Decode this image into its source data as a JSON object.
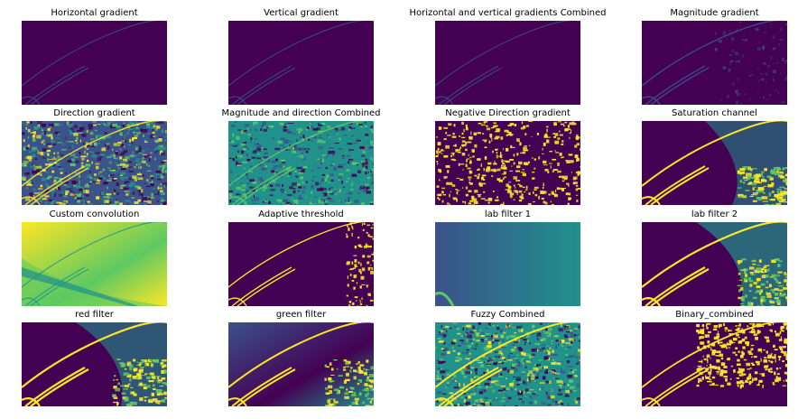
{
  "figure": {
    "panels": [
      {
        "title": "Horizontal gradient",
        "style": "dark-lines"
      },
      {
        "title": "Vertical gradient",
        "style": "dark-lines"
      },
      {
        "title": "Horizontal and vertical gradients Combined",
        "style": "dark-lines"
      },
      {
        "title": "Magnitude gradient",
        "style": "dark-lines-noisy"
      },
      {
        "title": "Direction gradient",
        "style": "noisy-yellow"
      },
      {
        "title": "Magnitude and direction Combined",
        "style": "noisy-teal"
      },
      {
        "title": "Negative Direction gradient",
        "style": "sparse-yellow"
      },
      {
        "title": "Saturation channel",
        "style": "saturation"
      },
      {
        "title": "Custom convolution",
        "style": "custom-conv"
      },
      {
        "title": "Adaptive threshold",
        "style": "adaptive"
      },
      {
        "title": "lab filter 1",
        "style": "lab1"
      },
      {
        "title": "lab filter 2",
        "style": "lab2"
      },
      {
        "title": "red filter",
        "style": "red"
      },
      {
        "title": "green filter",
        "style": "green"
      },
      {
        "title": "Fuzzy Combined",
        "style": "fuzzy"
      },
      {
        "title": "Binary_combined",
        "style": "binary"
      }
    ],
    "colormap": {
      "dark": "#440154",
      "indigo": "#3b528b",
      "teal": "#21918c",
      "green": "#5ec962",
      "yellow": "#fde725"
    }
  }
}
